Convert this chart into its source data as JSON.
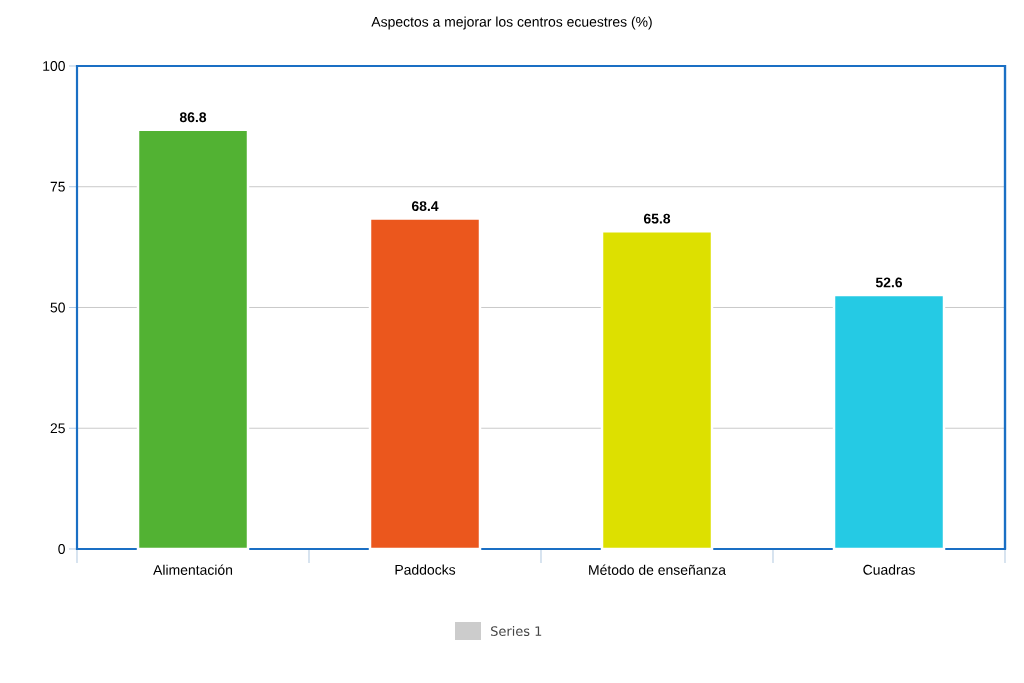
{
  "chart_data": {
    "type": "bar",
    "title": "Aspectos a mejorar los centros ecuestres (%)",
    "categories": [
      "Alimentación",
      "Paddocks",
      "Método de enseñanza",
      "Cuadras"
    ],
    "series": [
      {
        "name": "Series 1",
        "color": "#cccccc",
        "colors": [
          "#52b233",
          "#eb571d",
          "#dde000",
          "#25cae4"
        ],
        "values": [
          86.8,
          68.4,
          65.8,
          52.6
        ]
      }
    ],
    "ylim": [
      0,
      100
    ],
    "yticks": [
      0,
      25,
      50,
      75,
      100
    ],
    "grid": "y",
    "legend": "bottom",
    "data_labels": true
  }
}
